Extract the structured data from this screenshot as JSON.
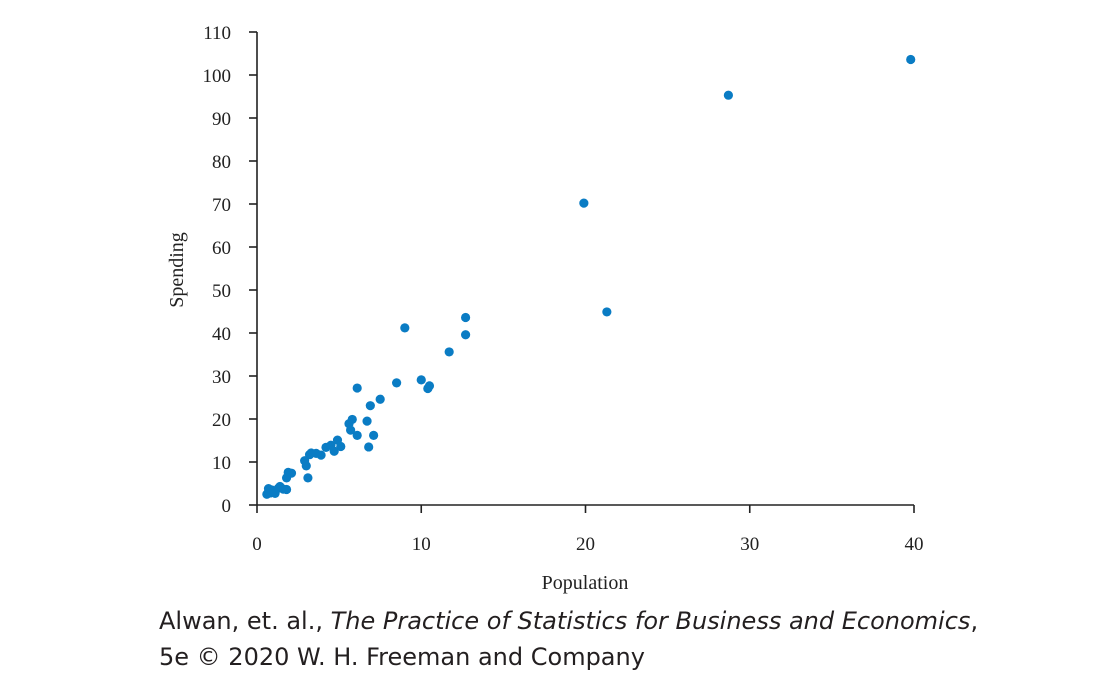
{
  "chart_data": {
    "type": "scatter",
    "xlabel": "Population",
    "ylabel": "Spending",
    "xlim": [
      0,
      40
    ],
    "ylim": [
      0,
      110
    ],
    "xticks": [
      0,
      10,
      20,
      30,
      40
    ],
    "yticks": [
      0,
      10,
      20,
      30,
      40,
      50,
      60,
      70,
      80,
      90,
      100,
      110
    ],
    "grid": false,
    "marker_color": "#0a7cc4",
    "points": [
      [
        0.6,
        2.5
      ],
      [
        0.7,
        3.0
      ],
      [
        0.8,
        2.8
      ],
      [
        0.9,
        3.5
      ],
      [
        0.7,
        3.8
      ],
      [
        1.0,
        3.2
      ],
      [
        1.1,
        2.7
      ],
      [
        1.3,
        3.9
      ],
      [
        1.4,
        4.3
      ],
      [
        1.6,
        3.7
      ],
      [
        1.8,
        3.6
      ],
      [
        1.8,
        6.3
      ],
      [
        1.9,
        7.6
      ],
      [
        2.1,
        7.4
      ],
      [
        2.9,
        10.3
      ],
      [
        3.0,
        9.1
      ],
      [
        3.1,
        6.3
      ],
      [
        3.2,
        11.7
      ],
      [
        3.3,
        12.1
      ],
      [
        3.6,
        12.0
      ],
      [
        3.9,
        11.6
      ],
      [
        4.2,
        13.4
      ],
      [
        4.5,
        13.9
      ],
      [
        4.7,
        12.5
      ],
      [
        4.9,
        15.1
      ],
      [
        5.1,
        13.6
      ],
      [
        5.6,
        18.9
      ],
      [
        5.7,
        17.4
      ],
      [
        5.8,
        19.9
      ],
      [
        6.1,
        16.2
      ],
      [
        6.1,
        27.2
      ],
      [
        6.7,
        19.5
      ],
      [
        6.8,
        13.5
      ],
      [
        6.9,
        23.1
      ],
      [
        7.1,
        16.2
      ],
      [
        7.5,
        24.6
      ],
      [
        8.5,
        28.4
      ],
      [
        9.0,
        41.2
      ],
      [
        10.0,
        29.1
      ],
      [
        10.4,
        27.1
      ],
      [
        10.5,
        27.7
      ],
      [
        11.7,
        35.6
      ],
      [
        12.7,
        43.6
      ],
      [
        12.7,
        39.6
      ],
      [
        19.9,
        70.2
      ],
      [
        21.3,
        44.9
      ],
      [
        28.7,
        95.3
      ],
      [
        39.8,
        103.6
      ]
    ]
  },
  "caption": {
    "line1_prefix": "Alwan, et. al., ",
    "line1_title": "The Practice of Statistics for Business and Economics",
    "line1_suffix": ",",
    "line2": "5e © 2020 W. H. Freeman and Company"
  }
}
